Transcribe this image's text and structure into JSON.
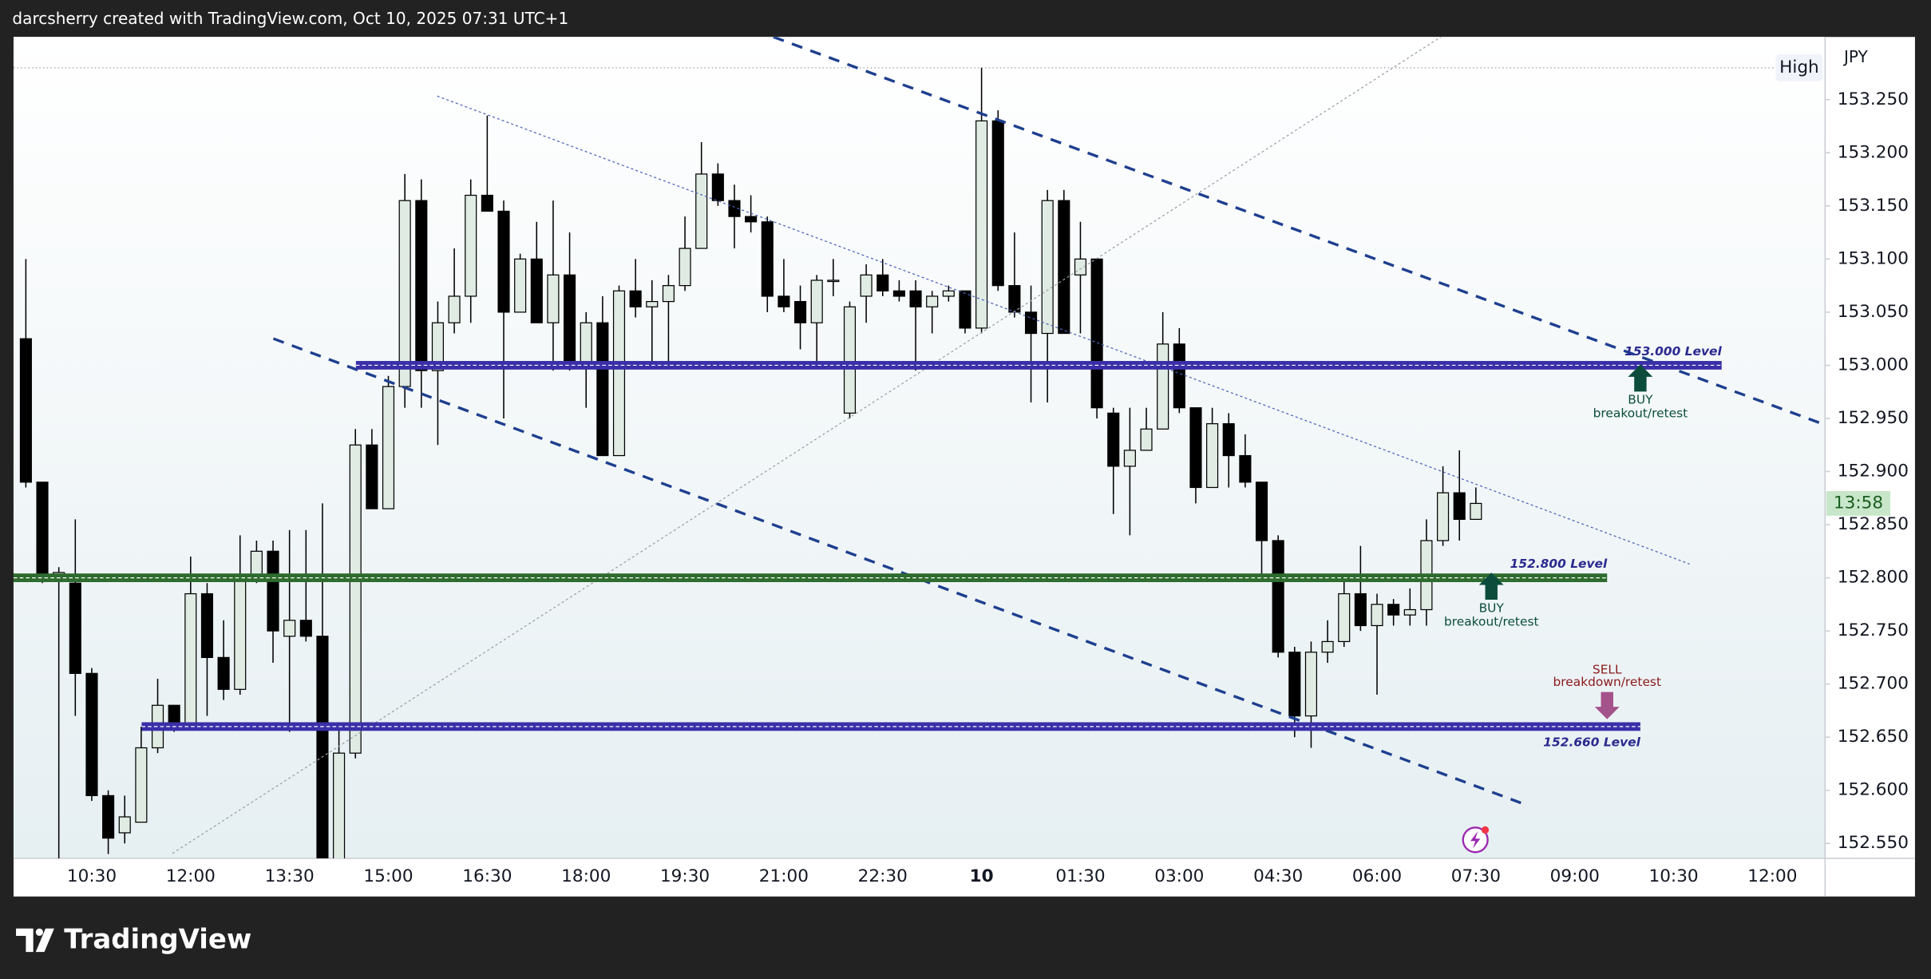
{
  "header": {
    "text": "darcsherry created with TradingView.com, Oct 10, 2025 07:31 UTC+1"
  },
  "footer": {
    "brand": "TradingView"
  },
  "chart_data": {
    "type": "candlestick",
    "currency": "JPY",
    "grid": false,
    "up_color": "#e0ebe3",
    "down_color": "#000000",
    "wick_color": "#000000",
    "categories": [
      null,
      null,
      null,
      null,
      "10:30",
      null,
      null,
      null,
      null,
      null,
      "12:00",
      null,
      null,
      null,
      null,
      null,
      "13:30",
      null,
      null,
      null,
      null,
      null,
      "15:00",
      null,
      null,
      null,
      null,
      null,
      "16:30",
      null,
      null,
      null,
      null,
      null,
      "18:00",
      null,
      null,
      null,
      null,
      null,
      "19:30",
      null,
      null,
      null,
      null,
      null,
      "21:00",
      null,
      null,
      null,
      null,
      null,
      "22:30",
      null,
      null,
      null,
      null,
      null,
      "10",
      null,
      null,
      null,
      null,
      null,
      "01:30",
      null,
      null,
      null,
      null,
      null,
      "03:00",
      null,
      null,
      null,
      null,
      null,
      "04:30",
      null,
      null,
      null,
      null,
      null,
      "06:00",
      null,
      null,
      null,
      null,
      null,
      "07:30",
      null,
      null,
      null,
      null,
      null,
      "09:00",
      null,
      null,
      null,
      null,
      null,
      "10:30",
      null,
      null,
      null,
      null,
      null,
      "12:00",
      null,
      null
    ],
    "open": [
      153.025,
      152.89,
      152.8,
      152.795,
      152.71,
      152.595,
      152.56,
      152.57,
      152.64,
      152.68,
      152.66,
      152.785,
      152.725,
      152.695,
      152.8,
      152.825,
      152.745,
      152.76,
      152.745,
      152.535,
      152.635,
      152.925,
      152.865,
      152.98,
      153.155,
      152.995,
      153.04,
      153.065,
      153.16,
      153.145,
      153.05,
      153.1,
      153.04,
      153.085,
      153.0,
      153.04,
      152.915,
      153.07,
      153.055,
      153.06,
      153.075,
      153.11,
      153.18,
      153.155,
      153.14,
      153.135,
      153.065,
      153.06,
      153.04,
      153.08,
      152.955,
      153.065,
      153.085,
      153.07,
      153.07,
      153.055,
      153.065,
      153.07,
      153.035,
      153.23,
      153.075,
      153.05,
      153.03,
      153.155,
      153.085,
      153.1,
      152.955,
      152.905,
      152.92,
      152.94,
      153.02,
      152.96,
      152.885,
      152.945,
      152.915,
      152.89,
      152.835,
      152.73,
      152.67,
      152.73,
      152.74,
      152.785,
      152.755,
      152.775,
      152.765,
      152.77,
      152.835,
      152.88,
      152.855,
      null,
      null,
      null,
      null,
      null,
      null,
      null,
      null,
      null,
      null,
      null,
      null,
      null,
      null,
      null,
      null,
      null,
      null,
      null,
      null
    ],
    "high": [
      153.1,
      152.89,
      152.81,
      152.855,
      152.715,
      152.6,
      152.595,
      152.66,
      152.705,
      152.68,
      152.82,
      152.795,
      152.76,
      152.84,
      152.835,
      152.835,
      152.845,
      152.845,
      152.87,
      152.66,
      152.94,
      152.94,
      152.99,
      153.18,
      153.175,
      153.06,
      153.11,
      153.175,
      153.235,
      153.155,
      153.105,
      153.135,
      153.155,
      153.125,
      153.05,
      153.065,
      153.075,
      153.1,
      153.08,
      153.085,
      153.14,
      153.21,
      153.19,
      153.17,
      153.16,
      153.14,
      153.1,
      153.075,
      153.085,
      153.1,
      153.06,
      153.095,
      153.1,
      153.08,
      153.08,
      153.07,
      153.075,
      153.07,
      153.28,
      153.24,
      153.125,
      153.075,
      153.165,
      153.165,
      153.135,
      153.1,
      152.96,
      152.96,
      152.96,
      153.05,
      153.035,
      152.96,
      152.96,
      152.955,
      152.935,
      152.89,
      152.84,
      152.735,
      152.74,
      152.76,
      152.8,
      152.83,
      152.785,
      152.78,
      152.79,
      152.855,
      152.905,
      152.92,
      152.885,
      null,
      null,
      null,
      null,
      null,
      null,
      null,
      null,
      null,
      null,
      null,
      null,
      null,
      null,
      null,
      null,
      null,
      null,
      null,
      null
    ],
    "low": [
      152.885,
      152.795,
      152.53,
      152.67,
      152.59,
      152.54,
      152.55,
      152.57,
      152.635,
      152.655,
      152.66,
      152.67,
      152.685,
      152.69,
      152.795,
      152.72,
      152.655,
      152.74,
      152.53,
      152.53,
      152.63,
      152.865,
      152.865,
      152.96,
      152.96,
      152.925,
      153.03,
      153.04,
      153.145,
      152.95,
      153.05,
      153.04,
      152.995,
      152.995,
      152.96,
      152.915,
      152.915,
      153.045,
      153.0,
      153.0,
      153.07,
      153.11,
      153.15,
      153.11,
      153.125,
      153.05,
      153.05,
      153.015,
      153.0,
      153.065,
      152.95,
      153.04,
      153.065,
      153.06,
      152.995,
      153.03,
      153.06,
      153.03,
      153.03,
      153.07,
      153.045,
      152.965,
      152.965,
      153.03,
      153.03,
      152.95,
      152.86,
      152.84,
      152.92,
      152.94,
      152.955,
      152.87,
      152.885,
      152.885,
      152.885,
      152.8,
      152.725,
      152.65,
      152.64,
      152.72,
      152.735,
      152.75,
      152.69,
      152.755,
      152.755,
      152.755,
      152.83,
      152.835,
      152.855,
      null,
      null,
      null,
      null,
      null,
      null,
      null,
      null,
      null,
      null,
      null,
      null,
      null,
      null,
      null,
      null,
      null,
      null,
      null,
      null
    ],
    "close": [
      152.89,
      152.8,
      152.805,
      152.71,
      152.595,
      152.555,
      152.575,
      152.64,
      152.68,
      152.66,
      152.785,
      152.725,
      152.695,
      152.8,
      152.825,
      152.75,
      152.76,
      152.745,
      152.535,
      152.635,
      152.925,
      152.865,
      152.98,
      153.155,
      152.995,
      153.04,
      153.065,
      153.16,
      153.145,
      153.05,
      153.1,
      153.04,
      153.085,
      153.0,
      153.04,
      152.915,
      153.07,
      153.055,
      153.06,
      153.075,
      153.11,
      153.18,
      153.155,
      153.14,
      153.135,
      153.065,
      153.055,
      153.04,
      153.08,
      153.08,
      153.055,
      153.085,
      153.07,
      153.065,
      153.055,
      153.065,
      153.07,
      153.035,
      153.23,
      153.075,
      153.05,
      153.03,
      153.155,
      153.03,
      153.1,
      152.96,
      152.905,
      152.92,
      152.94,
      153.02,
      152.96,
      152.885,
      152.945,
      152.915,
      152.89,
      152.835,
      152.73,
      152.67,
      152.73,
      152.74,
      152.785,
      152.755,
      152.775,
      152.765,
      152.77,
      152.835,
      152.88,
      152.855,
      152.87,
      null,
      null,
      null,
      null,
      null,
      null,
      null,
      null,
      null,
      null,
      null,
      null,
      null,
      null,
      null,
      null,
      null,
      null,
      null,
      null
    ],
    "ylim": [
      152.536,
      153.309
    ],
    "yticks": [
      {
        "value": 152.55,
        "label": "152.550"
      },
      {
        "value": 152.6,
        "label": "152.600"
      },
      {
        "value": 152.65,
        "label": "152.650"
      },
      {
        "value": 152.7,
        "label": "152.700"
      },
      {
        "value": 152.75,
        "label": "152.750"
      },
      {
        "value": 152.8,
        "label": "152.800"
      },
      {
        "value": 152.85,
        "label": "152.850"
      },
      {
        "value": 152.9,
        "label": "152.900"
      },
      {
        "value": 152.95,
        "label": "152.950"
      },
      {
        "value": 153.0,
        "label": "153.000"
      },
      {
        "value": 153.05,
        "label": "153.050"
      },
      {
        "value": 153.1,
        "label": "153.100"
      },
      {
        "value": 153.15,
        "label": "153.150"
      },
      {
        "value": 153.2,
        "label": "153.200"
      },
      {
        "value": 153.25,
        "label": "153.250"
      }
    ],
    "high_marker": {
      "label": "High",
      "value": 153.28
    },
    "countdown": "13:58",
    "levels": [
      {
        "value": 153.0,
        "label": "153.000 Level",
        "color": "#3a2fa8"
      },
      {
        "value": 152.8,
        "label": "152.800 Level",
        "color": "#2e6b2e"
      },
      {
        "value": 152.66,
        "label": "152.660 Level",
        "color": "#3a2fa8"
      }
    ],
    "annotations": [
      {
        "title": "BUY",
        "text": "breakout/retest"
      },
      {
        "title": "BUY",
        "text": "breakout/retest"
      },
      {
        "title": "SELL",
        "text": "breakdown/retest"
      }
    ]
  }
}
